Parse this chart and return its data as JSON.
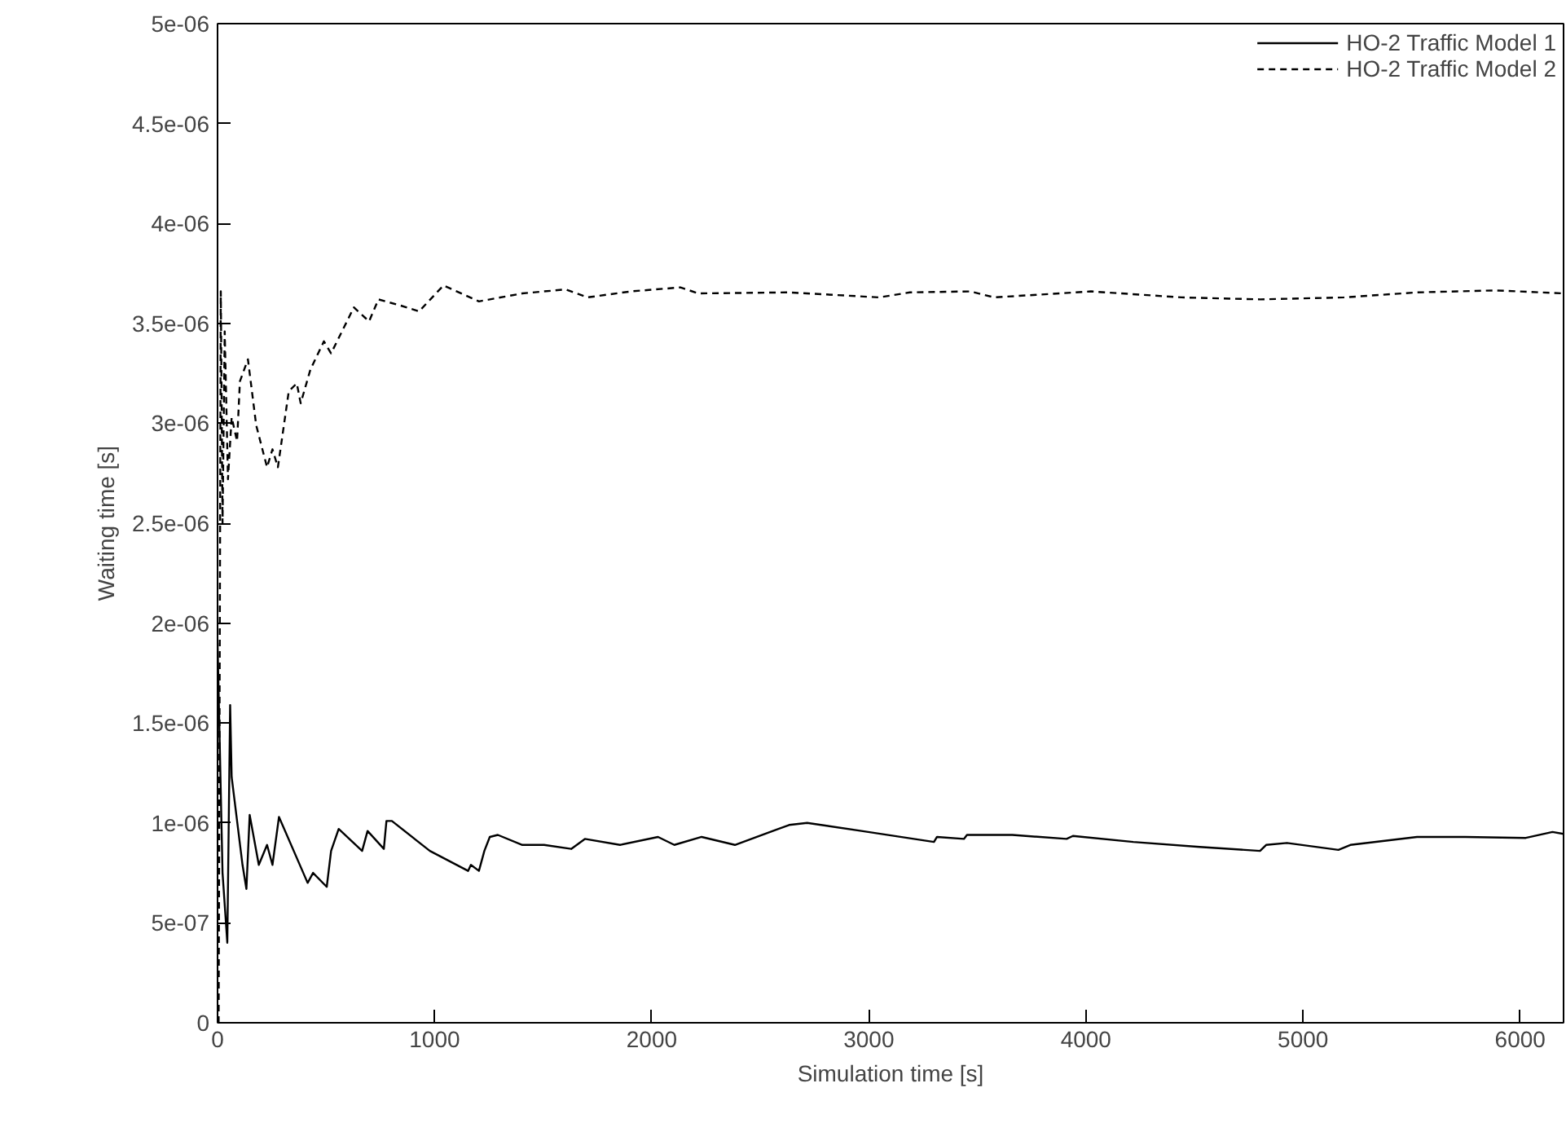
{
  "chart_data": {
    "type": "line",
    "xlabel": "Simulation time [s]",
    "ylabel": "Waiting time [s]",
    "xlim": [
      0,
      6200
    ],
    "xticks": [
      0,
      1000,
      2000,
      3000,
      4000,
      5000,
      6000
    ],
    "ylim": [
      0,
      5e-06
    ],
    "yticks": [
      {
        "value": 0,
        "label": "0"
      },
      {
        "value": 5e-07,
        "label": "5e-07"
      },
      {
        "value": 1e-06,
        "label": "1e-06"
      },
      {
        "value": 1.5e-06,
        "label": "1.5e-06"
      },
      {
        "value": 2e-06,
        "label": "2e-06"
      },
      {
        "value": 2.5e-06,
        "label": "2.5e-06"
      },
      {
        "value": 3e-06,
        "label": "3e-06"
      },
      {
        "value": 3.5e-06,
        "label": "3.5e-06"
      },
      {
        "value": 4e-06,
        "label": "4e-06"
      },
      {
        "value": 4.5e-06,
        "label": "4.5e-06"
      },
      {
        "value": 5e-06,
        "label": "5e-06"
      }
    ],
    "grid": false,
    "legend": "top right",
    "series": [
      {
        "name": "HO-2 Traffic Model 1",
        "color": "#000000",
        "line_style": "solid",
        "x": [
          0,
          23,
          45,
          58,
          65,
          115,
          133,
          148,
          190,
          228,
          253,
          283,
          415,
          440,
          503,
          523,
          558,
          666,
          691,
          766,
          778,
          803,
          978,
          1154,
          1167,
          1204,
          1229,
          1254,
          1291,
          1404,
          1504,
          1629,
          1692,
          1854,
          2029,
          2104,
          2230,
          2383,
          2633,
          2716,
          2966,
          3300,
          3314,
          3438,
          3452,
          3661,
          3911,
          3940,
          4218,
          4524,
          4802,
          4830,
          4926,
          5163,
          5218,
          5525,
          5747,
          6026,
          6149,
          6200
        ],
        "values": [
          1.9e-06,
          7.5e-07,
          4e-07,
          1.59e-06,
          1.23e-06,
          7.9e-07,
          6.7e-07,
          1.04e-06,
          7.9e-07,
          8.9e-07,
          7.9e-07,
          1.03e-06,
          7e-07,
          7.5e-07,
          6.8e-07,
          8.6e-07,
          9.7e-07,
          8.6e-07,
          9.6e-07,
          8.7e-07,
          1.01e-06,
          1.01e-06,
          8.6e-07,
          7.6e-07,
          7.9e-07,
          7.6e-07,
          8.6e-07,
          9.3e-07,
          9.4e-07,
          8.9e-07,
          8.9e-07,
          8.7e-07,
          9.2e-07,
          8.9e-07,
          9.3e-07,
          8.9e-07,
          9.3e-07,
          8.9e-07,
          9.9e-07,
          1e-06,
          9.6e-07,
          9.05e-07,
          9.3e-07,
          9.2e-07,
          9.4e-07,
          9.4e-07,
          9.2e-07,
          9.35e-07,
          9.05e-07,
          8.8e-07,
          8.6e-07,
          8.9e-07,
          9e-07,
          8.65e-07,
          8.9e-07,
          9.3e-07,
          9.3e-07,
          9.25e-07,
          9.55e-07,
          9.45e-07
        ]
      },
      {
        "name": "HO-2 Traffic Model 2",
        "color": "#000000",
        "line_style": "dashed",
        "x": [
          5,
          15,
          23,
          33,
          48,
          65,
          90,
          103,
          140,
          178,
          228,
          253,
          278,
          328,
          365,
          383,
          428,
          490,
          523,
          628,
          698,
          741,
          841,
          928,
          1041,
          1204,
          1404,
          1604,
          1704,
          1904,
          2132,
          2215,
          2633,
          3048,
          3189,
          3467,
          3578,
          4023,
          4440,
          4802,
          5188,
          5525,
          5886,
          6200
        ],
        "values": [
          0,
          3.66e-06,
          2.5e-06,
          3.46e-06,
          2.72e-06,
          3.03e-06,
          2.91e-06,
          3.21e-06,
          3.32e-06,
          2.99e-06,
          2.78e-06,
          2.87e-06,
          2.78e-06,
          3.16e-06,
          3.2e-06,
          3.1e-06,
          3.27e-06,
          3.41e-06,
          3.35e-06,
          3.58e-06,
          3.51e-06,
          3.62e-06,
          3.59e-06,
          3.56e-06,
          3.69e-06,
          3.61e-06,
          3.65e-06,
          3.67e-06,
          3.63e-06,
          3.66e-06,
          3.68e-06,
          3.65e-06,
          3.655e-06,
          3.63e-06,
          3.655e-06,
          3.66e-06,
          3.63e-06,
          3.66e-06,
          3.63e-06,
          3.62e-06,
          3.63e-06,
          3.655e-06,
          3.665e-06,
          3.65e-06
        ]
      }
    ]
  }
}
